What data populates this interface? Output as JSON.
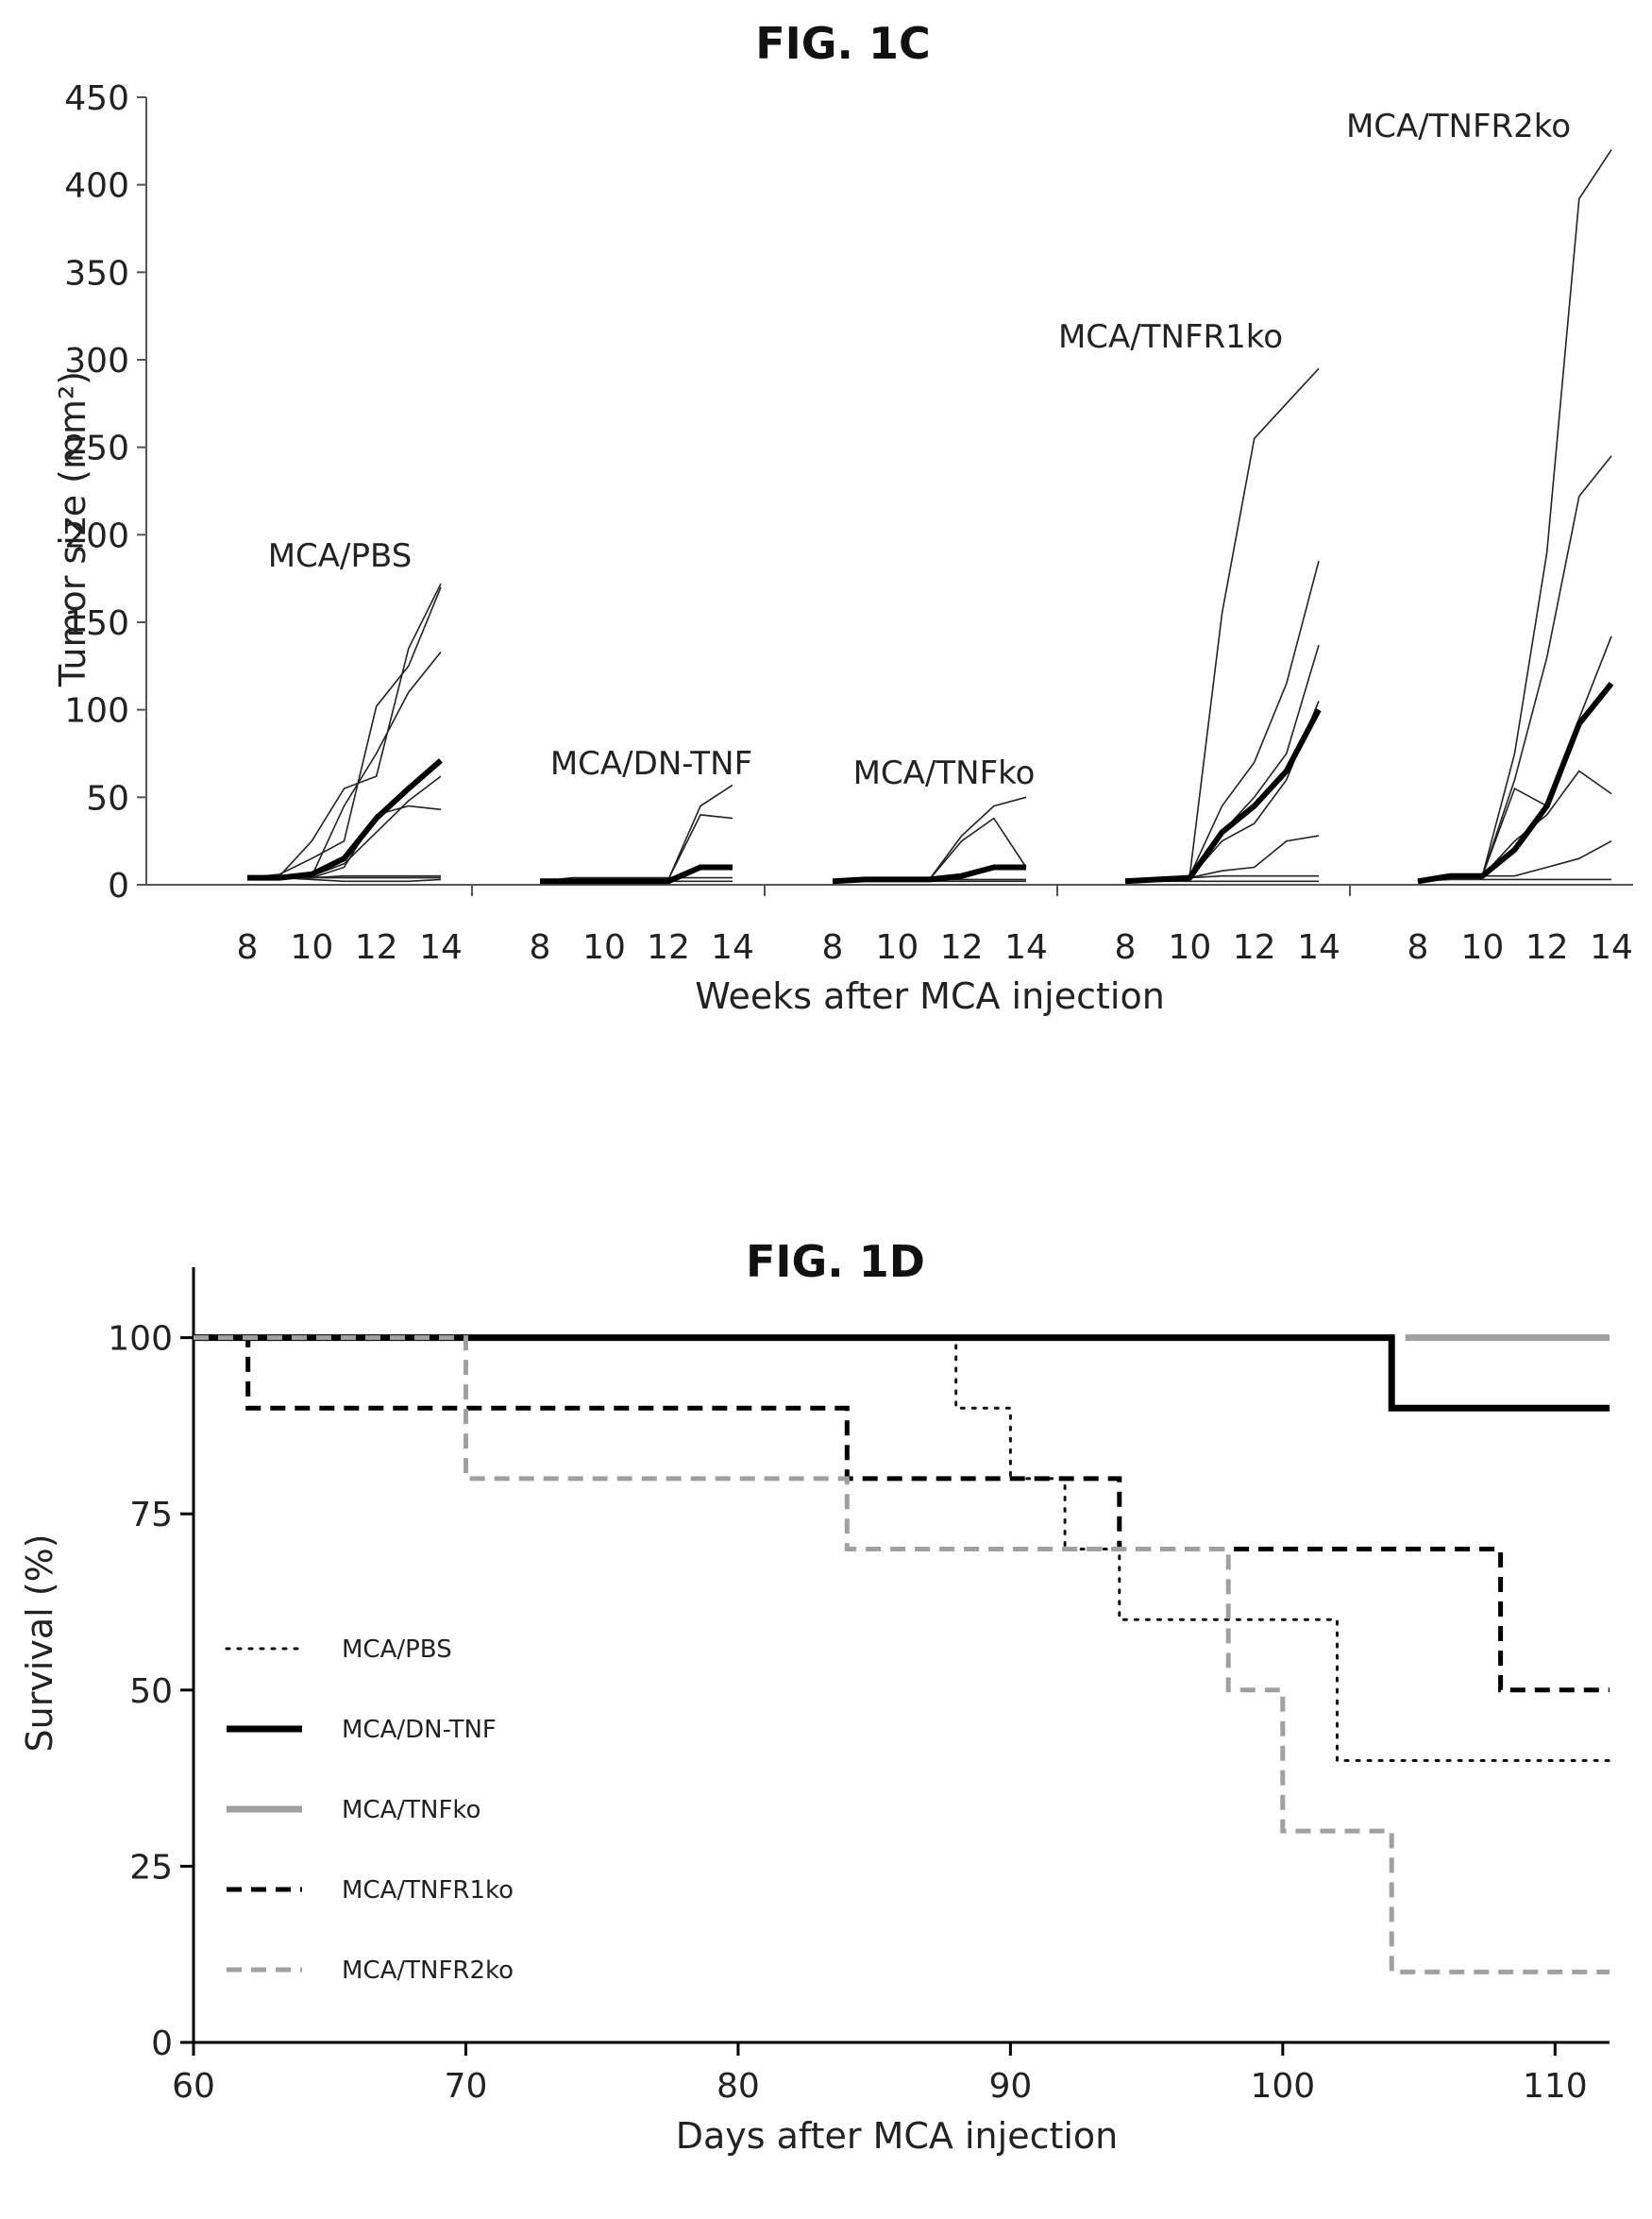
{
  "chart_data": [
    {
      "type": "line",
      "title": "FIG. 1C",
      "xlabel": "Weeks after MCA injection",
      "ylabel": "Tumor size (mm²)",
      "ylim": [
        0,
        450
      ],
      "yticks": [
        "0",
        "50",
        "100",
        "150",
        "200",
        "250",
        "300",
        "350",
        "400",
        "450"
      ],
      "xticks": [
        "8",
        "10",
        "12",
        "14"
      ],
      "x": [
        8,
        9,
        10,
        11,
        12,
        13,
        14
      ],
      "groups": [
        {
          "name": "MCA/PBS",
          "mean": [
            4,
            4,
            6,
            15,
            38,
            55,
            71
          ],
          "individuals": [
            [
              4,
              5,
              25,
              55,
              62,
              135,
              172
            ],
            [
              4,
              6,
              15,
              25,
              102,
              125,
              170
            ],
            [
              4,
              4,
              5,
              45,
              75,
              110,
              133
            ],
            [
              4,
              4,
              5,
              12,
              30,
              48,
              62
            ],
            [
              4,
              4,
              4,
              10,
              40,
              45,
              43
            ],
            [
              4,
              4,
              4,
              5,
              5,
              5,
              5
            ],
            [
              4,
              4,
              4,
              4,
              4,
              4,
              4
            ],
            [
              4,
              4,
              3,
              2,
              2,
              2,
              3
            ]
          ]
        },
        {
          "name": "MCA/DN-TNF",
          "mean": [
            2,
            2,
            2,
            2,
            2,
            10,
            10
          ],
          "individuals": [
            [
              2,
              2,
              2,
              2,
              3,
              45,
              57
            ],
            [
              2,
              2,
              2,
              2,
              3,
              40,
              38
            ],
            [
              2,
              4,
              4,
              4,
              4,
              4,
              4
            ],
            [
              2,
              2,
              2,
              2,
              2,
              2,
              2
            ]
          ]
        },
        {
          "name": "MCA/TNFko",
          "mean": [
            2,
            3,
            3,
            3,
            5,
            10,
            10
          ],
          "individuals": [
            [
              2,
              3,
              3,
              3,
              28,
              45,
              50
            ],
            [
              2,
              3,
              3,
              3,
              25,
              38,
              10
            ],
            [
              2,
              3,
              3,
              3,
              3,
              3,
              3
            ],
            [
              2,
              2,
              2,
              2,
              2,
              2,
              2
            ]
          ]
        },
        {
          "name": "MCA/TNFR1ko",
          "mean": [
            2,
            3,
            4,
            30,
            45,
            65,
            100
          ],
          "individuals": [
            [
              2,
              3,
              5,
              155,
              255,
              275,
              295
            ],
            [
              2,
              3,
              5,
              45,
              70,
              115,
              185
            ],
            [
              2,
              3,
              5,
              30,
              50,
              75,
              137
            ],
            [
              2,
              3,
              4,
              25,
              35,
              60,
              105
            ],
            [
              2,
              3,
              4,
              8,
              10,
              25,
              28
            ],
            [
              2,
              3,
              4,
              5,
              5,
              5,
              5
            ],
            [
              2,
              2,
              2,
              2,
              2,
              2,
              2
            ]
          ]
        },
        {
          "name": "MCA/TNFR2ko",
          "mean": [
            2,
            5,
            5,
            20,
            45,
            92,
            115
          ],
          "individuals": [
            [
              2,
              5,
              5,
              75,
              190,
              392,
              420
            ],
            [
              2,
              5,
              5,
              60,
              130,
              222,
              245
            ],
            [
              2,
              5,
              5,
              55,
              45,
              95,
              142
            ],
            [
              2,
              5,
              5,
              25,
              40,
              65,
              52
            ],
            [
              2,
              5,
              5,
              5,
              10,
              15,
              25
            ],
            [
              2,
              3,
              3,
              3,
              3,
              3,
              3
            ]
          ]
        }
      ]
    },
    {
      "type": "line",
      "subtype": "survival-step",
      "title": "FIG. 1D",
      "xlabel": "Days after MCA injection",
      "ylabel": "Survival (%)",
      "xlim": [
        60,
        112
      ],
      "ylim": [
        0,
        110
      ],
      "xticks": [
        "60",
        "70",
        "80",
        "90",
        "100",
        "110"
      ],
      "yticks": [
        "0",
        "25",
        "50",
        "75",
        "100"
      ],
      "legend_position": "lower-left",
      "series": [
        {
          "name": "MCA/PBS",
          "style": "dotted",
          "color": "#111111",
          "x": [
            60,
            88,
            90,
            92,
            94,
            102,
            112
          ],
          "y": [
            100,
            90,
            80,
            70,
            60,
            40,
            40
          ]
        },
        {
          "name": "MCA/DN-TNF",
          "style": "solid-thick",
          "color": "#000000",
          "x": [
            60,
            104,
            112
          ],
          "y": [
            100,
            90,
            90
          ]
        },
        {
          "name": "MCA/TNFko",
          "style": "solid-gray",
          "color": "#a0a0a0",
          "x": [
            104.5,
            112
          ],
          "y": [
            100,
            100
          ]
        },
        {
          "name": "MCA/TNFR1ko",
          "style": "dashed",
          "color": "#000000",
          "x": [
            60,
            62,
            84,
            94,
            108,
            112
          ],
          "y": [
            100,
            90,
            80,
            70,
            50,
            50
          ]
        },
        {
          "name": "MCA/TNFR2ko",
          "style": "dashed-gray",
          "color": "#a0a0a0",
          "x": [
            60,
            70,
            84,
            98,
            100,
            104,
            112
          ],
          "y": [
            100,
            80,
            70,
            50,
            30,
            10,
            10
          ]
        }
      ]
    }
  ]
}
